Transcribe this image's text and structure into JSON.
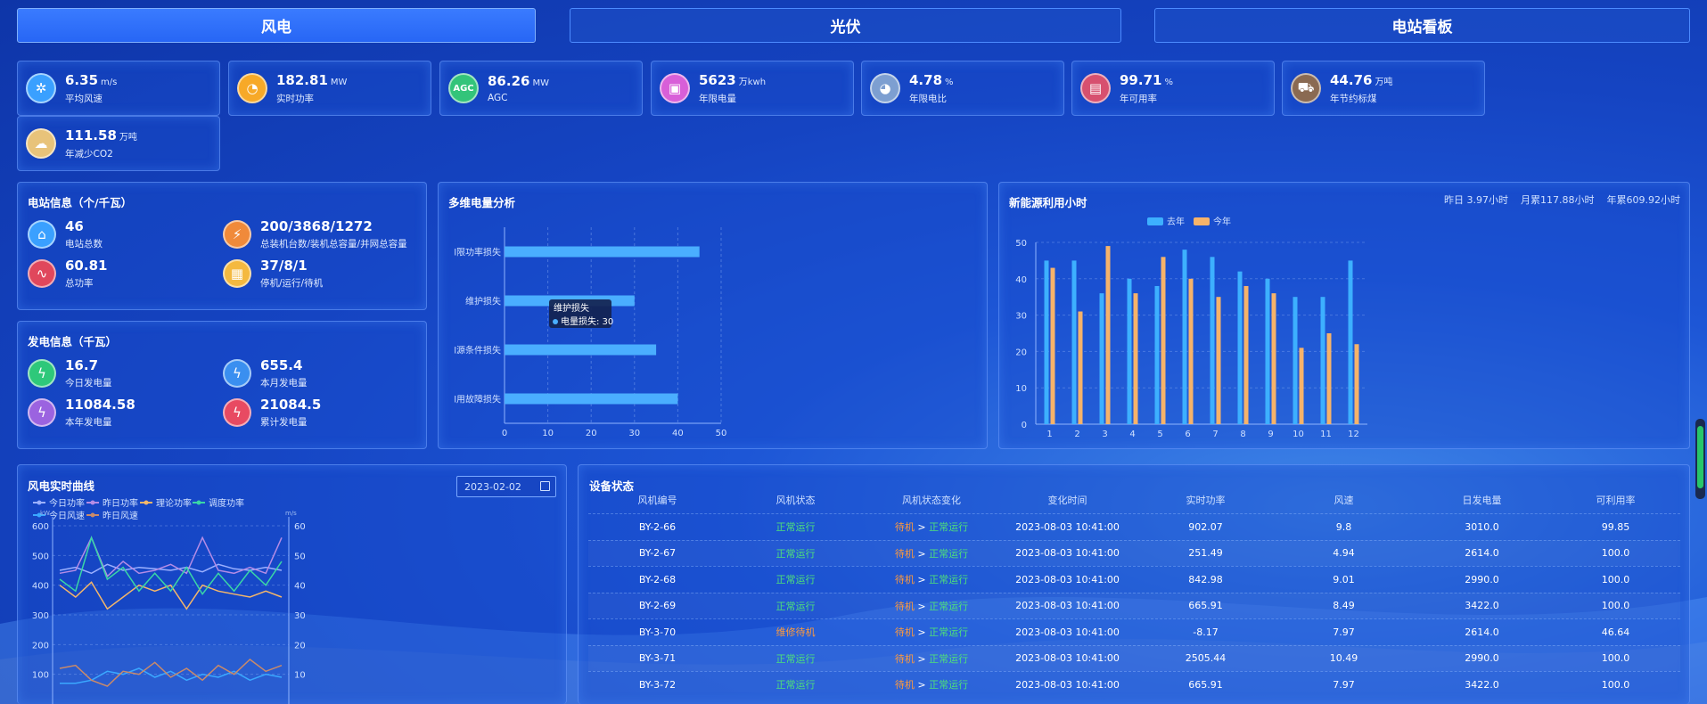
{
  "tabs": [
    {
      "label": "风电"
    },
    {
      "label": "光伏"
    },
    {
      "label": "电站看板"
    }
  ],
  "kpis": [
    {
      "value": "6.35",
      "unit": "m/s",
      "label": "平均风速",
      "icon": "fan-icon",
      "color": "#3aa0ff"
    },
    {
      "value": "182.81",
      "unit": "MW",
      "label": "实时功率",
      "icon": "gauge-icon",
      "color": "#f7a928"
    },
    {
      "value": "86.26",
      "unit": "MW",
      "label": "AGC",
      "icon": "agc-icon",
      "color": "#33c47a"
    },
    {
      "value": "5623",
      "unit": "万kwh",
      "label": "年限电量",
      "icon": "monitor-icon",
      "color": "#d85fd8"
    },
    {
      "value": "4.78",
      "unit": "%",
      "label": "年限电比",
      "icon": "pie-icon",
      "color": "#7d9fd1"
    },
    {
      "value": "99.71",
      "unit": "%",
      "label": "年可用率",
      "icon": "screen-chart-icon",
      "color": "#d7506f"
    },
    {
      "value": "44.76",
      "unit": "万吨",
      "label": "年节约标煤",
      "icon": "coal-cart-icon",
      "color": "#8a6a52"
    },
    {
      "value": "111.58",
      "unit": "万吨",
      "label": "年减少CO2",
      "icon": "co2-cloud-icon",
      "color": "#e8c37a"
    }
  ],
  "station": {
    "title": "电站信息（个/千瓦）",
    "items": [
      {
        "value": "46",
        "label": "电站总数",
        "icon": "stations-icon",
        "color": "#3aa0ff"
      },
      {
        "value": "200/3868/1272",
        "label": "总装机台数/装机总容量/并网总容量",
        "icon": "capacity-icon",
        "color": "#f08a3a"
      },
      {
        "value": "60.81",
        "label": "总功率",
        "icon": "pulse-icon",
        "color": "#e0475c"
      },
      {
        "value": "37/8/1",
        "label": "停机/运行/待机",
        "icon": "calendar-icon",
        "color": "#f4b940"
      }
    ]
  },
  "generation": {
    "title": "发电信息（千瓦）",
    "items": [
      {
        "value": "16.7",
        "label": "今日发电量",
        "icon": "lightning-day-icon",
        "color": "#2ec87a"
      },
      {
        "value": "655.4",
        "label": "本月发电量",
        "icon": "lightning-month-icon",
        "color": "#3a8ff0"
      },
      {
        "value": "11084.58",
        "label": "本年发电量",
        "icon": "lightning-year-icon",
        "color": "#9b63e0"
      },
      {
        "value": "21084.5",
        "label": "累计发电量",
        "icon": "lightning-total-icon",
        "color": "#e84a62"
      }
    ]
  },
  "multi": {
    "title": "多维电量分析",
    "tooltip_title": "维护损失",
    "tooltip_series": "电量损失: 30",
    "chart_data": {
      "type": "bar",
      "orientation": "horizontal",
      "categories": [
        "限功率损失",
        "维护损失",
        "资源条件损失",
        "故障损失"
      ],
      "display_labels": [
        "l限功率损失",
        "维护损失",
        "l源条件损失",
        "l用故障损失"
      ],
      "values": [
        45,
        30,
        35,
        40
      ],
      "xlim": [
        0,
        50
      ],
      "xticks": [
        "0",
        "10",
        "20",
        "30",
        "40",
        "50"
      ]
    }
  },
  "hours": {
    "title": "新能源利用小时",
    "stats": "昨日 3.97小时    月累117.88小时    年累609.92小时",
    "chart_data": {
      "type": "bar",
      "categories": [
        "1",
        "2",
        "3",
        "4",
        "5",
        "6",
        "7",
        "8",
        "9",
        "10",
        "11",
        "12"
      ],
      "ylim": [
        0,
        50
      ],
      "yticks": [
        "0",
        "10",
        "20",
        "30",
        "40",
        "50"
      ],
      "series": [
        {
          "name": "去年",
          "color": "#3db0ff",
          "values": [
            45,
            45,
            36,
            40,
            38,
            48,
            46,
            42,
            40,
            35,
            35,
            45
          ]
        },
        {
          "name": "今年",
          "color": "#f6b36a",
          "values": [
            43,
            31,
            49,
            36,
            46,
            40,
            35,
            38,
            36,
            21,
            25,
            22
          ]
        }
      ]
    }
  },
  "realtime": {
    "title": "风电实时曲线",
    "date": "2023-02-02",
    "y_left_unit": "kW",
    "y_right_unit": "m/s",
    "chart_data": {
      "type": "line",
      "yticks_left": [
        "100",
        "200",
        "300",
        "400",
        "500",
        "600"
      ],
      "yticks_right": [
        "10",
        "20",
        "30",
        "40",
        "50",
        "60"
      ],
      "series": [
        {
          "name": "今日功率",
          "color": "#9bb0ff",
          "axis": "left",
          "values": [
            450,
            460,
            440,
            470,
            450,
            460,
            455,
            450,
            460,
            445,
            470,
            455,
            450,
            460,
            450
          ]
        },
        {
          "name": "昨日功率",
          "color": "#b48ce6",
          "axis": "left",
          "values": [
            440,
            450,
            560,
            430,
            480,
            440,
            450,
            470,
            440,
            560,
            450,
            440,
            460,
            440,
            560
          ]
        },
        {
          "name": "理论功率",
          "color": "#f4b66a",
          "axis": "left",
          "values": [
            400,
            360,
            410,
            320,
            360,
            400,
            380,
            400,
            320,
            400,
            380,
            370,
            360,
            380,
            360
          ]
        },
        {
          "name": "调度功率",
          "color": "#3ad6a6",
          "axis": "left",
          "values": [
            420,
            380,
            560,
            420,
            460,
            380,
            440,
            380,
            460,
            370,
            440,
            380,
            450,
            400,
            480
          ]
        },
        {
          "name": "今日风速",
          "color": "#3aa8ff",
          "axis": "right",
          "values": [
            7,
            7,
            8,
            11,
            10,
            12,
            9,
            11,
            8,
            10,
            9,
            11,
            8,
            10,
            9
          ]
        },
        {
          "name": "昨日风速",
          "color": "#c98a6a",
          "axis": "right",
          "values": [
            12,
            13,
            8,
            6,
            11,
            10,
            14,
            9,
            12,
            8,
            13,
            10,
            15,
            11,
            13
          ]
        }
      ]
    }
  },
  "devices": {
    "title": "设备状态",
    "headers": [
      "风机编号",
      "风机状态",
      "风机状态变化",
      "变化时间",
      "实时功率",
      "风速",
      "日发电量",
      "可利用率"
    ],
    "rows": [
      {
        "id": "BY-2-66",
        "status": "正常运行",
        "from": "待机",
        "to": "正常运行",
        "time": "2023-08-03 10:41:00",
        "power": "902.07",
        "wind": "9.8",
        "energy": "3010.0",
        "avail": "99.85"
      },
      {
        "id": "BY-2-67",
        "status": "正常运行",
        "from": "待机",
        "to": "正常运行",
        "time": "2023-08-03 10:41:00",
        "power": "251.49",
        "wind": "4.94",
        "energy": "2614.0",
        "avail": "100.0"
      },
      {
        "id": "BY-2-68",
        "status": "正常运行",
        "from": "待机",
        "to": "正常运行",
        "time": "2023-08-03 10:41:00",
        "power": "842.98",
        "wind": "9.01",
        "energy": "2990.0",
        "avail": "100.0"
      },
      {
        "id": "BY-2-69",
        "status": "正常运行",
        "from": "待机",
        "to": "正常运行",
        "time": "2023-08-03 10:41:00",
        "power": "665.91",
        "wind": "8.49",
        "energy": "3422.0",
        "avail": "100.0"
      },
      {
        "id": "BY-3-70",
        "status": "维修待机",
        "from": "待机",
        "to": "正常运行",
        "time": "2023-08-03 10:41:00",
        "power": "-8.17",
        "wind": "7.97",
        "energy": "2614.0",
        "avail": "46.64"
      },
      {
        "id": "BY-3-71",
        "status": "正常运行",
        "from": "待机",
        "to": "正常运行",
        "time": "2023-08-03 10:41:00",
        "power": "2505.44",
        "wind": "10.49",
        "energy": "2990.0",
        "avail": "100.0"
      },
      {
        "id": "BY-3-72",
        "status": "正常运行",
        "from": "待机",
        "to": "正常运行",
        "time": "2023-08-03 10:41:00",
        "power": "665.91",
        "wind": "7.97",
        "energy": "3422.0",
        "avail": "100.0"
      }
    ]
  }
}
